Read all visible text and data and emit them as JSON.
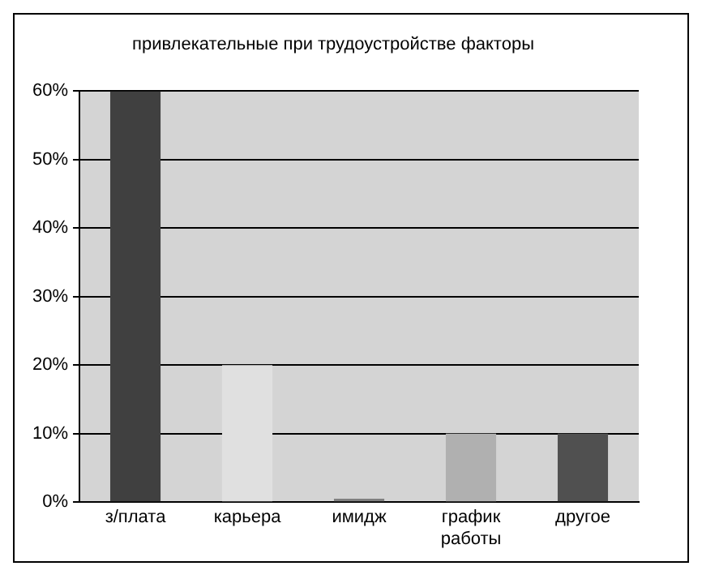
{
  "chart_data": {
    "type": "bar",
    "title": "привлекательные при трудоустройстве факторы",
    "categories": [
      "з/плата",
      "карьера",
      "имидж",
      "график работы",
      "другое"
    ],
    "values": [
      60,
      20,
      0.5,
      10,
      10
    ],
    "colors": [
      "#404040",
      "#e0e0e0",
      "#808080",
      "#b0b0b0",
      "#505050"
    ],
    "ylim": [
      0,
      60
    ],
    "yticks": [
      {
        "value": 0,
        "label": "0%"
      },
      {
        "value": 10,
        "label": "10%"
      },
      {
        "value": 20,
        "label": "20%"
      },
      {
        "value": 30,
        "label": "30%"
      },
      {
        "value": 40,
        "label": "40%"
      },
      {
        "value": 50,
        "label": "50%"
      },
      {
        "value": 60,
        "label": "60%"
      }
    ],
    "grid": "y",
    "legend": false
  }
}
